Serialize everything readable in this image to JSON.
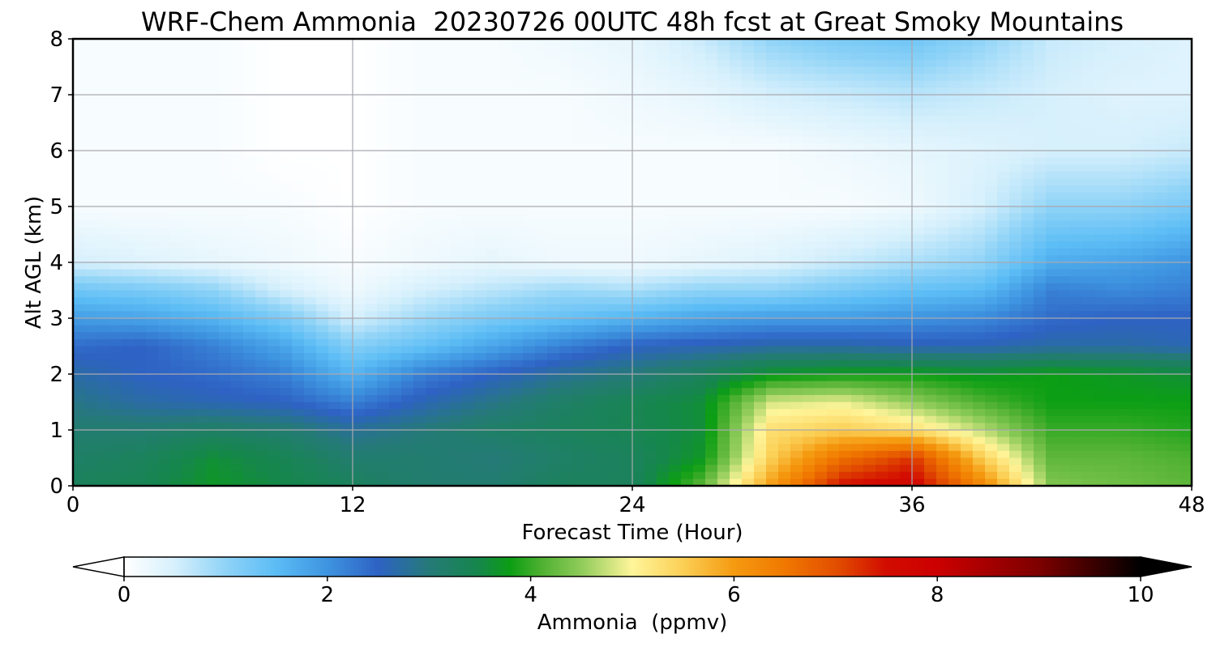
{
  "chart_data": {
    "type": "heatmap",
    "title": "WRF-Chem Ammonia  20230726 00UTC 48h fcst at Great Smoky Mountains",
    "xlabel": "Forecast Time (Hour)",
    "ylabel": "Alt AGL (km)",
    "xlim": [
      0,
      48
    ],
    "ylim": [
      0,
      8
    ],
    "xticks": [
      0,
      12,
      24,
      36,
      48
    ],
    "yticks": [
      0,
      1,
      2,
      3,
      4,
      5,
      6,
      7,
      8
    ],
    "grid": true,
    "x_hours": [
      0,
      3,
      6,
      9,
      12,
      15,
      18,
      21,
      24,
      27,
      30,
      33,
      36,
      39,
      42,
      45,
      48
    ],
    "y_km": [
      0,
      0.5,
      1,
      1.5,
      2,
      2.5,
      3,
      3.5,
      4,
      5,
      6,
      7,
      8
    ],
    "values_ppmv": [
      [
        3.3,
        3.4,
        3.7,
        3.5,
        3.3,
        3.1,
        3.1,
        3.3,
        3.3,
        4.2,
        6.0,
        7.5,
        7.7,
        6.3,
        4.4,
        4.3,
        4.2
      ],
      [
        3.2,
        3.3,
        3.6,
        3.4,
        3.1,
        3.1,
        3.0,
        3.2,
        3.3,
        3.7,
        5.5,
        6.6,
        7.2,
        5.5,
        4.2,
        4.2,
        4.1
      ],
      [
        3.1,
        3.1,
        3.2,
        3.1,
        2.8,
        3.0,
        3.2,
        3.3,
        3.4,
        3.6,
        5.3,
        5.5,
        5.3,
        4.7,
        4.0,
        4.0,
        3.9
      ],
      [
        2.9,
        2.7,
        2.6,
        2.5,
        2.2,
        2.6,
        2.9,
        3.2,
        3.4,
        3.6,
        4.8,
        4.9,
        4.5,
        4.1,
        3.8,
        3.8,
        3.8
      ],
      [
        2.7,
        2.5,
        2.4,
        2.2,
        1.6,
        2.2,
        2.5,
        2.8,
        3.0,
        3.3,
        3.7,
        3.8,
        3.8,
        3.7,
        3.8,
        3.7,
        3.6
      ],
      [
        2.4,
        2.5,
        2.2,
        1.8,
        1.1,
        1.4,
        1.8,
        2.2,
        2.5,
        2.6,
        2.7,
        2.7,
        2.6,
        2.6,
        2.7,
        2.7,
        2.6
      ],
      [
        1.9,
        1.8,
        1.6,
        1.2,
        0.5,
        0.9,
        1.2,
        1.4,
        1.6,
        1.8,
        1.9,
        1.9,
        2.0,
        2.1,
        2.4,
        2.5,
        2.5
      ],
      [
        1.3,
        1.2,
        1.0,
        0.5,
        0.2,
        0.5,
        0.7,
        0.9,
        0.8,
        1.0,
        1.0,
        1.2,
        1.4,
        1.5,
        2.2,
        2.1,
        2.2
      ],
      [
        0.5,
        0.4,
        0.3,
        0.2,
        0.1,
        0.2,
        0.3,
        0.2,
        0.2,
        0.3,
        0.4,
        0.6,
        0.8,
        1.0,
        1.7,
        1.8,
        2.0
      ],
      [
        0.1,
        0.1,
        0.1,
        0.1,
        0.0,
        0.1,
        0.1,
        0.1,
        0.1,
        0.1,
        0.1,
        0.1,
        0.2,
        0.5,
        1.0,
        1.0,
        1.2
      ],
      [
        0.1,
        0.1,
        0.1,
        0.0,
        0.0,
        0.1,
        0.1,
        0.1,
        0.1,
        0.1,
        0.1,
        0.2,
        0.3,
        0.4,
        0.5,
        0.5,
        0.6
      ],
      [
        0.1,
        0.1,
        0.1,
        0.0,
        0.0,
        0.1,
        0.1,
        0.1,
        0.2,
        0.3,
        0.5,
        0.6,
        0.7,
        0.6,
        0.5,
        0.4,
        0.4
      ],
      [
        0.1,
        0.1,
        0.1,
        0.0,
        0.0,
        0.1,
        0.1,
        0.2,
        0.3,
        0.6,
        1.0,
        1.2,
        1.3,
        1.0,
        0.6,
        0.5,
        0.4
      ]
    ],
    "colorbar": {
      "label": "Ammonia  (ppmv)",
      "min": 0,
      "max": 10,
      "ticks": [
        0,
        2,
        4,
        6,
        8,
        10
      ],
      "extend": "both",
      "placement": "bottom",
      "stops": [
        {
          "value": 0.0,
          "color": "#ffffff"
        },
        {
          "value": 0.5,
          "color": "#d6f0fc"
        },
        {
          "value": 1.0,
          "color": "#8fd3f7"
        },
        {
          "value": 1.5,
          "color": "#5bbcf5"
        },
        {
          "value": 2.0,
          "color": "#3e94e0"
        },
        {
          "value": 2.5,
          "color": "#2e62c4"
        },
        {
          "value": 3.0,
          "color": "#257a78"
        },
        {
          "value": 3.5,
          "color": "#15874a"
        },
        {
          "value": 3.8,
          "color": "#0c9e14"
        },
        {
          "value": 4.1,
          "color": "#4db030"
        },
        {
          "value": 4.5,
          "color": "#90cc5a"
        },
        {
          "value": 5.0,
          "color": "#fff59a"
        },
        {
          "value": 5.5,
          "color": "#fbcf55"
        },
        {
          "value": 6.0,
          "color": "#f59a10"
        },
        {
          "value": 6.5,
          "color": "#f07800"
        },
        {
          "value": 7.0,
          "color": "#e24f00"
        },
        {
          "value": 7.5,
          "color": "#d20c00"
        },
        {
          "value": 8.0,
          "color": "#cc0000"
        },
        {
          "value": 9.0,
          "color": "#7d0000"
        },
        {
          "value": 10.0,
          "color": "#000000"
        }
      ]
    }
  }
}
